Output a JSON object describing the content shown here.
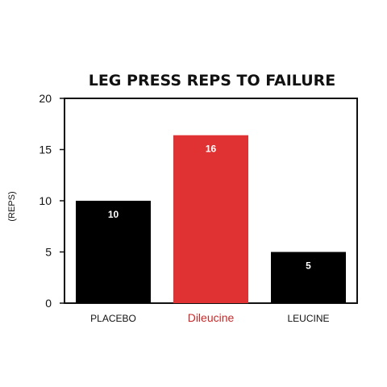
{
  "chart_data": {
    "type": "bar",
    "title": "LEG PRESS REPS TO FAILURE",
    "ylabel": "(REPS)",
    "xlabel": "",
    "ylim": [
      0,
      20
    ],
    "yticks": [
      0,
      5,
      10,
      15,
      20
    ],
    "categories": [
      "PLACEBO",
      "Dileucine",
      "LEUCINE"
    ],
    "values": [
      10,
      16.4,
      5
    ],
    "data_labels": [
      "10",
      "16",
      "5"
    ],
    "colors": [
      "#000000",
      "#e03232",
      "#000000"
    ],
    "category_label_colors": [
      "#111111",
      "#c62828",
      "#111111"
    ],
    "grid": false,
    "legend": "none"
  }
}
